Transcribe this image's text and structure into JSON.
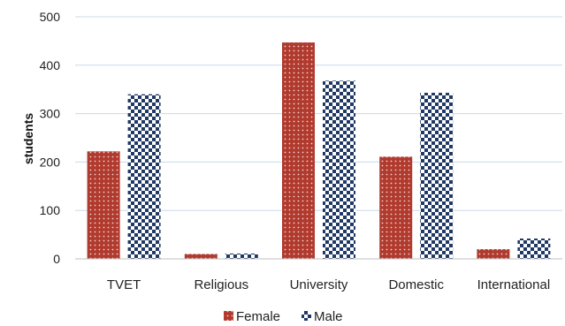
{
  "chart_data": {
    "type": "bar",
    "categories": [
      "TVET",
      "Religious",
      "University",
      "Domestic",
      "International"
    ],
    "series": [
      {
        "name": "Female",
        "values": [
          222,
          10,
          447,
          211,
          20
        ],
        "color": "#b03a2e",
        "pattern": "dots"
      },
      {
        "name": "Male",
        "values": [
          340,
          11,
          368,
          343,
          42
        ],
        "color": "#1f3864",
        "pattern": "checker"
      }
    ],
    "title": "",
    "xlabel": "",
    "ylabel": "students",
    "ylim": [
      0,
      500
    ],
    "yticks": [
      0,
      100,
      200,
      300,
      400,
      500
    ],
    "grid": true,
    "legend": "bottom"
  }
}
